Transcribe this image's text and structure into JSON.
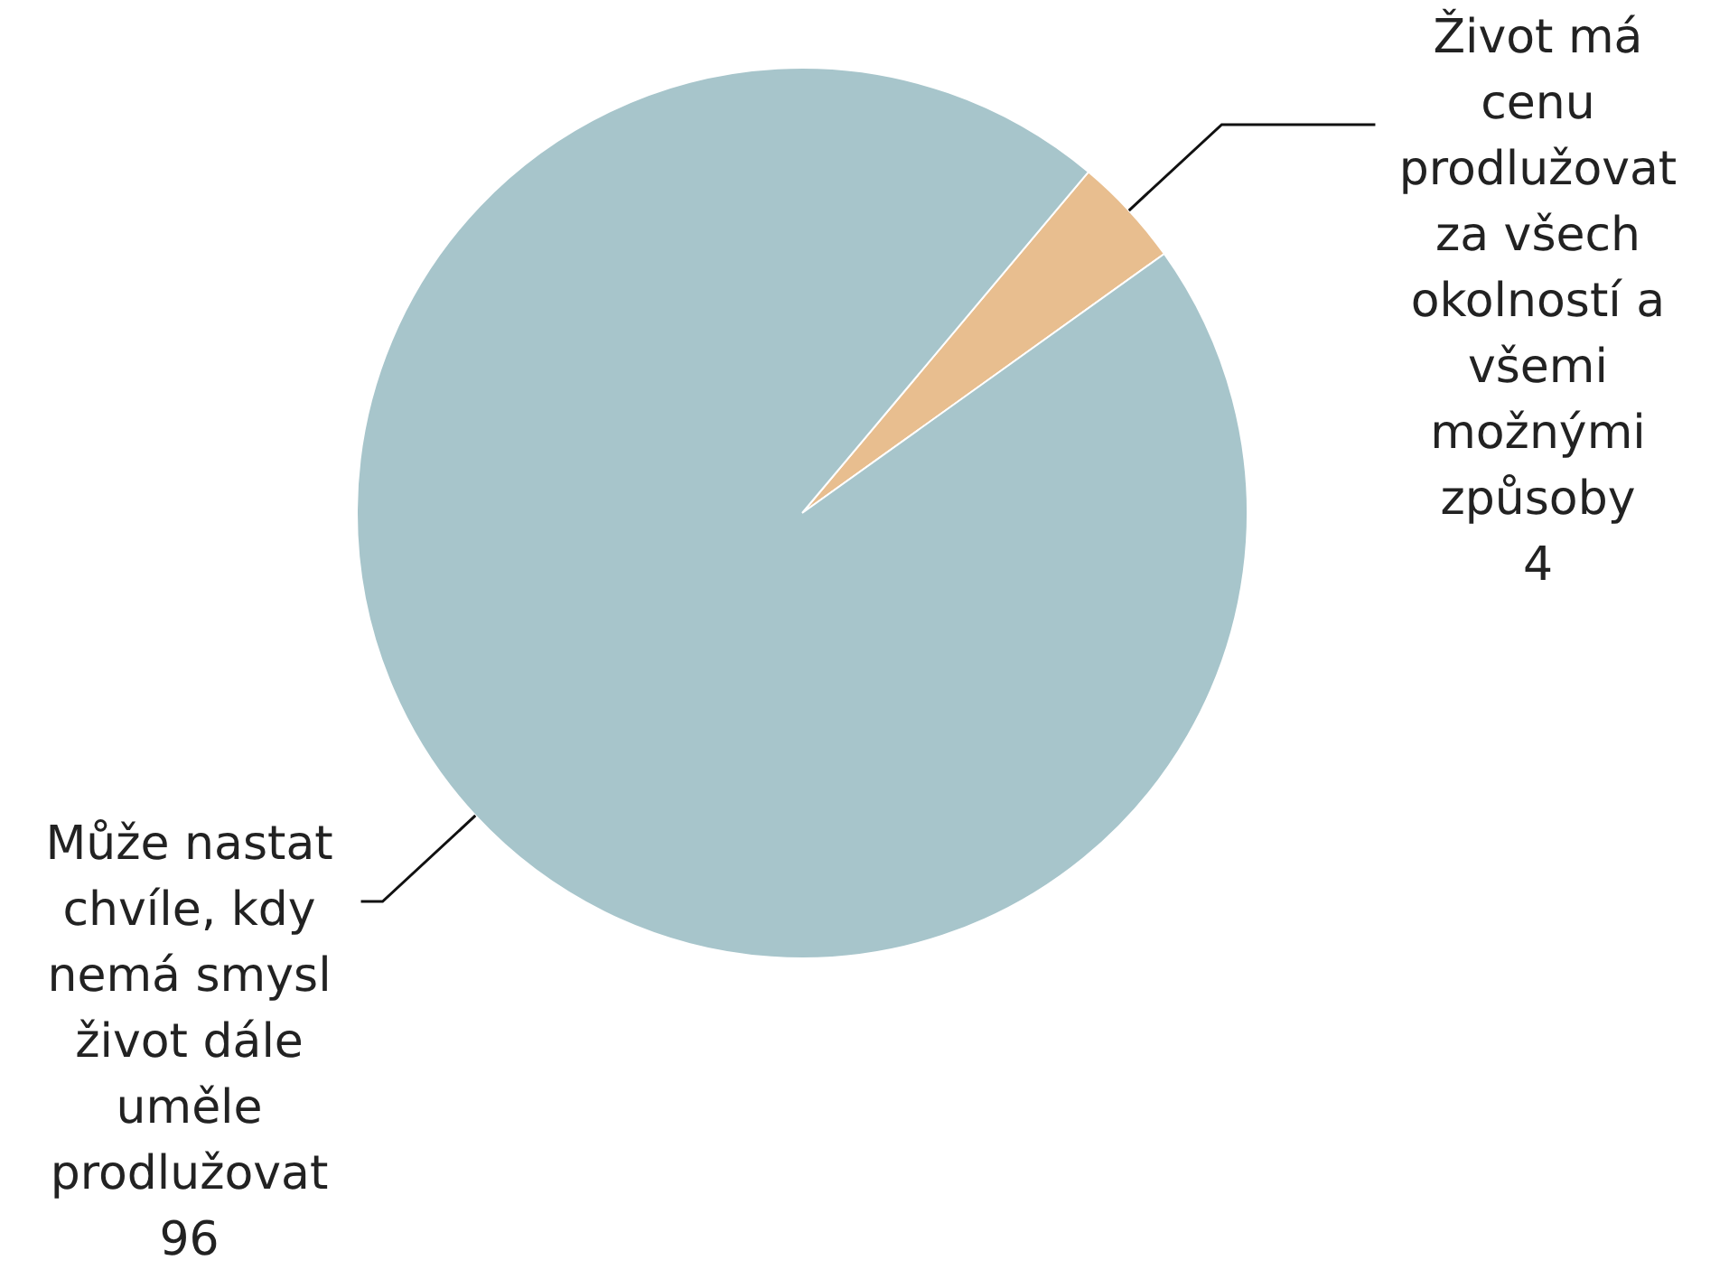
{
  "chart_data": {
    "type": "pie",
    "categories": [
      "Život má cenu prodlužovat za všech okolností a všemi možnými způsoby",
      "Může nastat chvíle, kdy nemá smysl život dále uměle prodlužovat"
    ],
    "values": [
      4,
      96
    ],
    "colors": [
      "#e8be8f",
      "#a7c5cb"
    ],
    "data_labels": true
  }
}
